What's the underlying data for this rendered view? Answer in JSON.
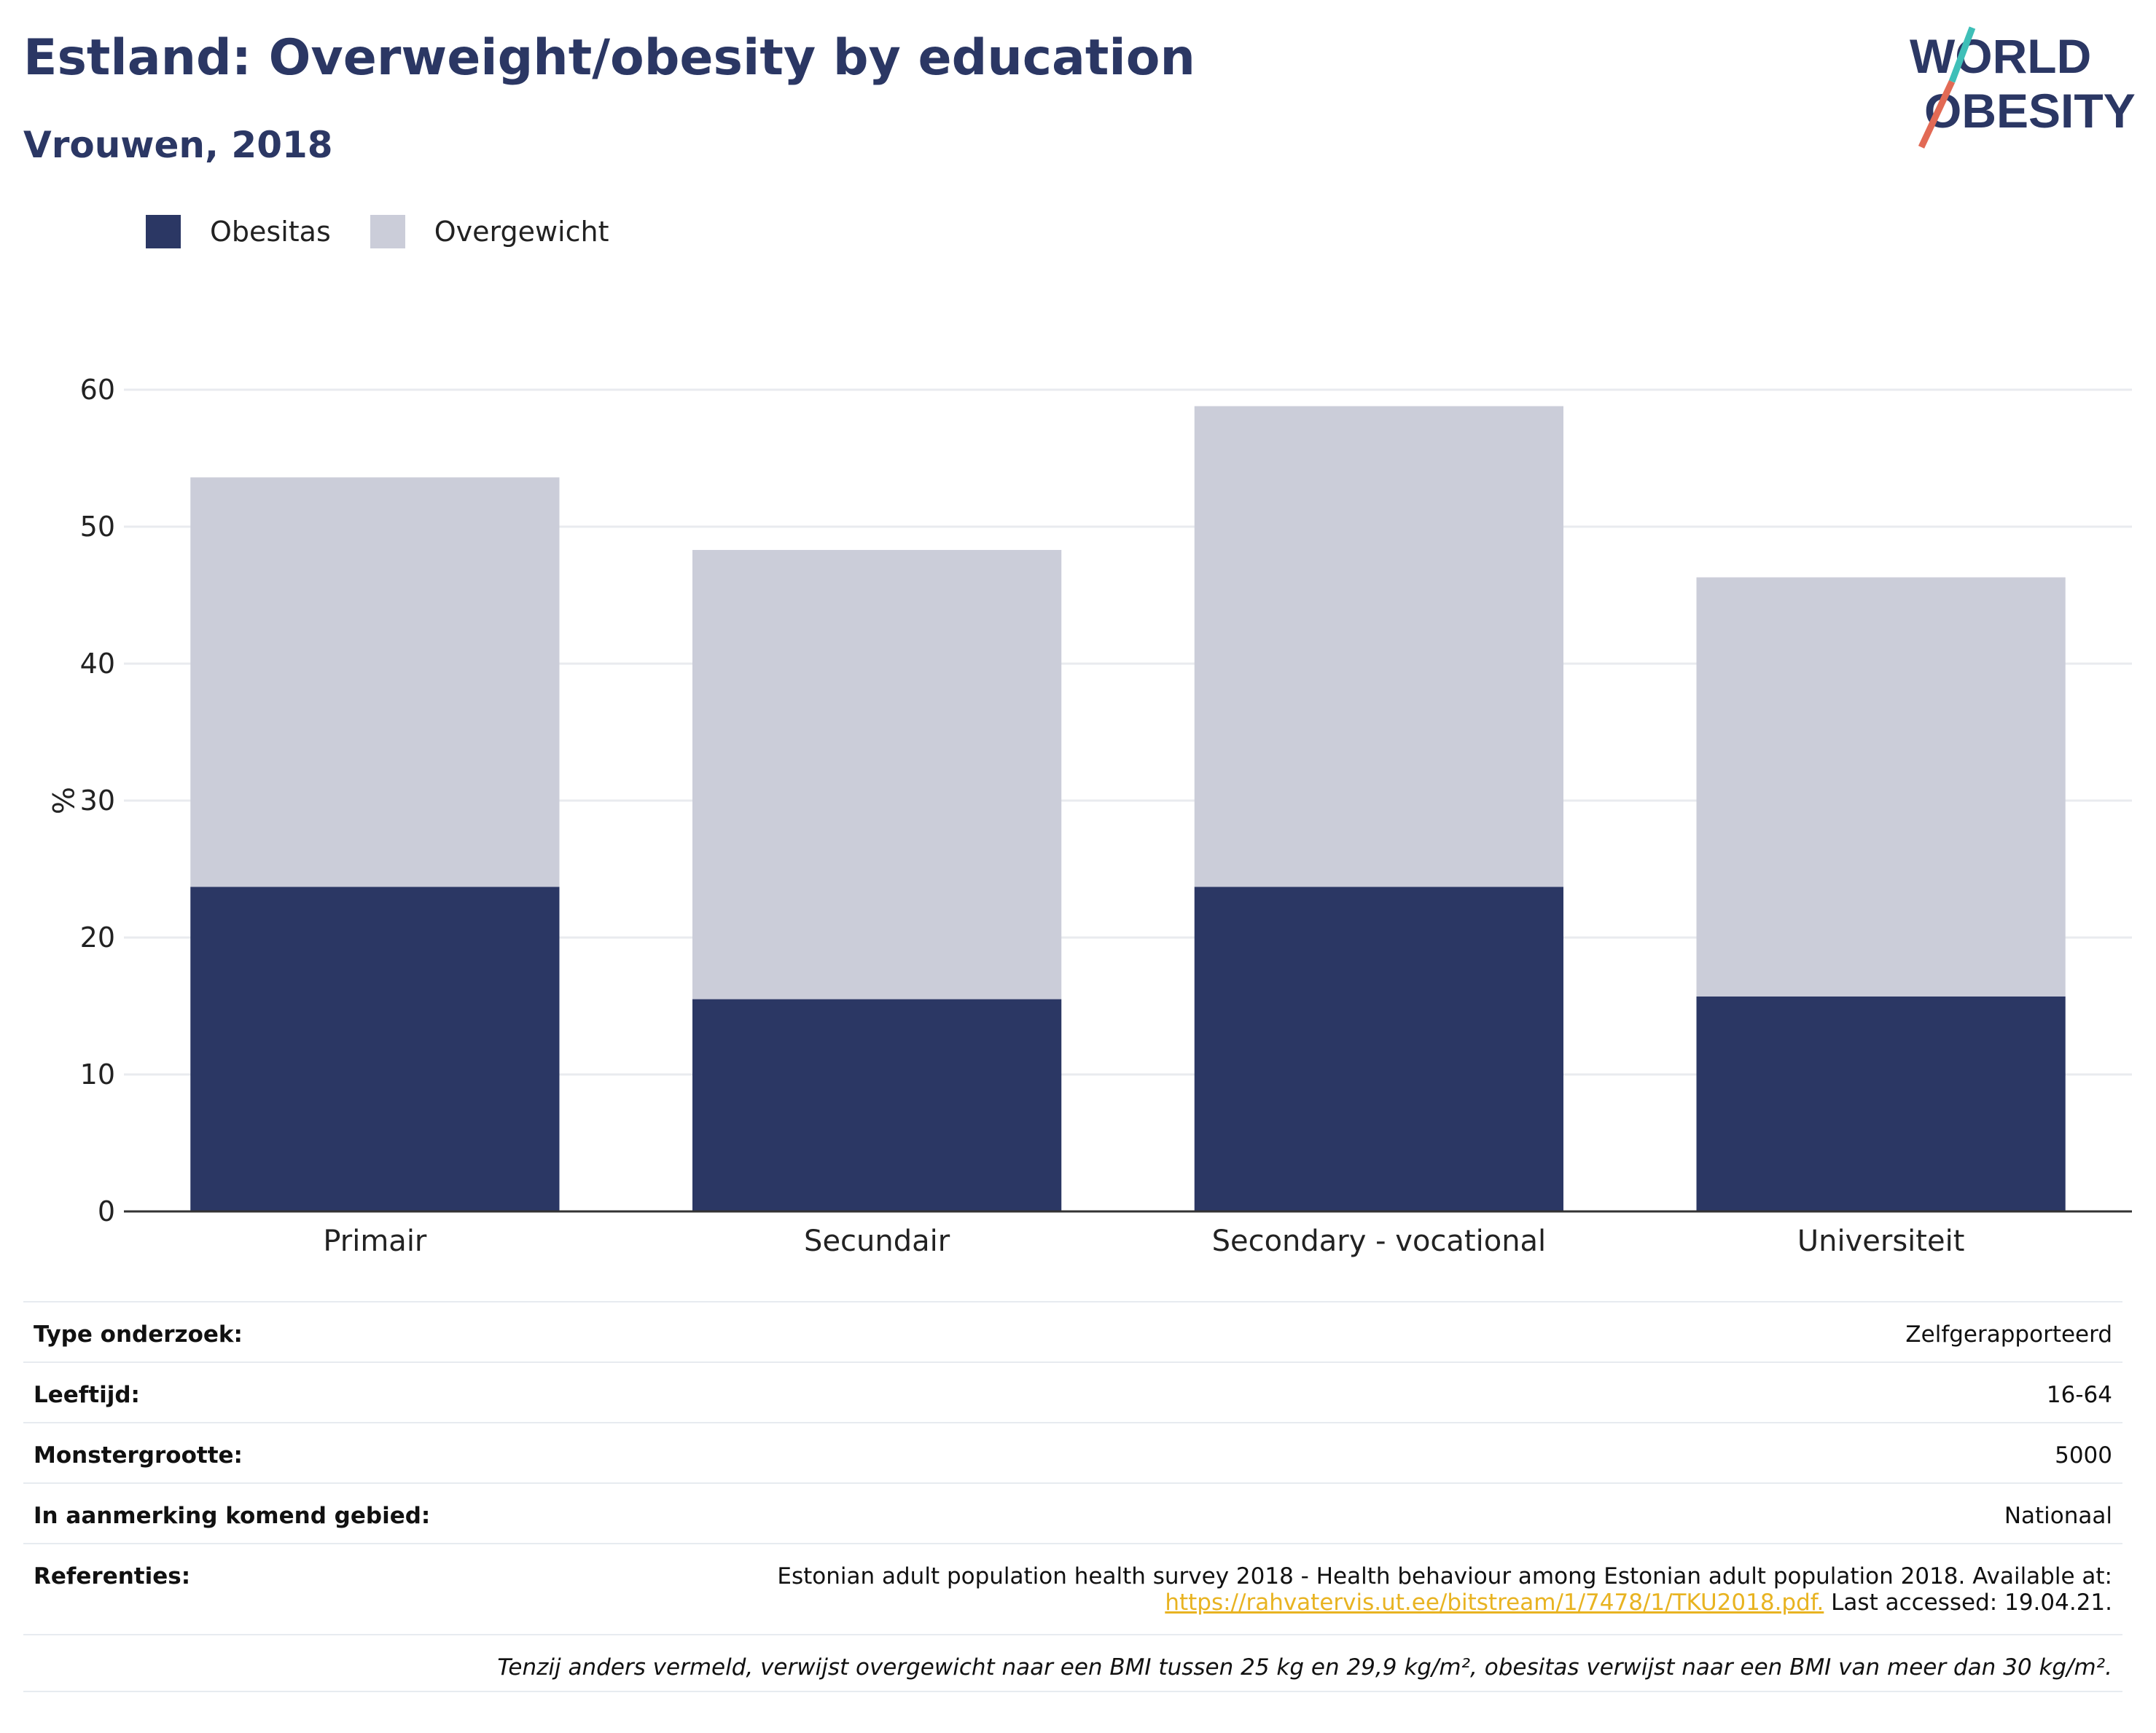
{
  "header": {
    "title": "Estland: Overweight/obesity by education",
    "subtitle": "Vrouwen, 2018"
  },
  "logo": {
    "line1": "WORLD",
    "line2": "OBESITY"
  },
  "colors": {
    "obesity": "#2b3764",
    "overweight": "#cbcdd9",
    "title": "#2b3764",
    "link": "#e8b321",
    "logo_teal": "#3fbfb8",
    "logo_coral": "#e26a55"
  },
  "chart_data": {
    "type": "bar",
    "stacked": true,
    "categories": [
      "Primair",
      "Secundair",
      "Secondary - vocational",
      "Universiteit"
    ],
    "series": [
      {
        "name": "Obesitas",
        "values": [
          23.7,
          15.5,
          23.7,
          15.7
        ]
      },
      {
        "name": "Overgewicht",
        "values": [
          29.9,
          32.8,
          35.1,
          30.6
        ]
      }
    ],
    "ylabel": "%",
    "xlabel": "",
    "ylim": [
      0,
      60
    ],
    "yticks": [
      0,
      10,
      20,
      30,
      40,
      50,
      60
    ],
    "grid": true,
    "legend": "top-left"
  },
  "info": {
    "rows": [
      {
        "label": "Type onderzoek:",
        "value": "Zelfgerapporteerd"
      },
      {
        "label": "Leeftijd:",
        "value": "16-64"
      },
      {
        "label": "Monstergrootte:",
        "value": "5000"
      },
      {
        "label": "In aanmerking komend gebied:",
        "value": "Nationaal"
      }
    ],
    "references": {
      "label": "Referenties:",
      "text": "Estonian adult population health survey 2018 - Health behaviour among Estonian adult population 2018. Available at:",
      "url": "https://rahvatervis.ut.ee/bitstream/1/7478/1/TKU2018.pdf.",
      "accessed": "Last accessed: 19.04.21."
    },
    "footnote": "Tenzij anders vermeld, verwijst overgewicht naar een BMI tussen 25 kg en 29,9 kg/m², obesitas verwijst naar een BMI van meer dan 30 kg/m²."
  }
}
